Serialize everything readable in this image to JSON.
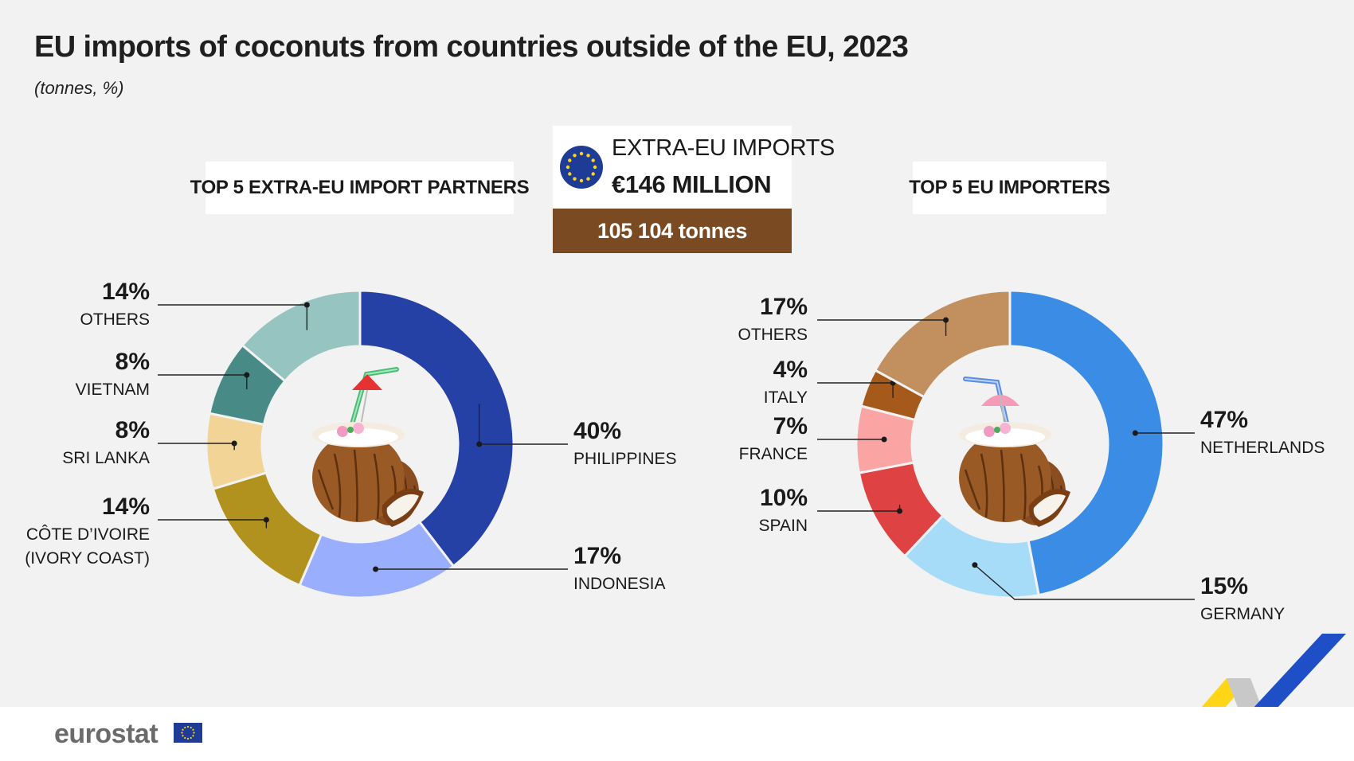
{
  "header": {
    "title": "EU imports of coconuts from countries outside of the EU, 2023",
    "subtitle": "(tonnes, %)"
  },
  "summary": {
    "line1": "EXTRA-EU IMPORTS",
    "line2": "€146 MILLION",
    "tonnes": "105 104 tonnes",
    "box_color": "#7a4b22"
  },
  "chart_data": [
    {
      "type": "pie",
      "title": "TOP 5 EXTRA-EU IMPORT PARTNERS",
      "unit": "%",
      "start": "top",
      "direction": "clockwise",
      "slices": [
        {
          "label": "PHILIPPINES",
          "value": 40,
          "display": "40%",
          "color": "#2641a6"
        },
        {
          "label": "INDONESIA",
          "value": 17,
          "display": "17%",
          "color": "#99aefc"
        },
        {
          "label": "CÔTE D’IVOIRE",
          "label2": "(IVORY COAST)",
          "value": 14,
          "display": "14%",
          "color": "#b1921e"
        },
        {
          "label": "SRI LANKA",
          "value": 8,
          "display": "8%",
          "color": "#f2d596"
        },
        {
          "label": "VIETNAM",
          "value": 8,
          "display": "8%",
          "color": "#488b86"
        },
        {
          "label": "OTHERS",
          "value": 14,
          "display": "14%",
          "color": "#96c4c0"
        }
      ]
    },
    {
      "type": "pie",
      "title": "TOP 5 EU IMPORTERS",
      "unit": "%",
      "start": "top",
      "direction": "clockwise",
      "slices": [
        {
          "label": "NETHERLANDS",
          "value": 47,
          "display": "47%",
          "color": "#3a8ce5"
        },
        {
          "label": "GERMANY",
          "value": 15,
          "display": "15%",
          "color": "#a6dcf7"
        },
        {
          "label": "SPAIN",
          "value": 10,
          "display": "10%",
          "color": "#df4242"
        },
        {
          "label": "FRANCE",
          "value": 7,
          "display": "7%",
          "color": "#fba4a4"
        },
        {
          "label": "ITALY",
          "value": 4,
          "display": "4%",
          "color": "#a55a1c"
        },
        {
          "label": "OTHERS",
          "value": 17,
          "display": "17%",
          "color": "#c28f5f"
        }
      ]
    }
  ],
  "footer": {
    "logo": "eurostat"
  },
  "icons": {
    "eu_flag": "eu-flag-icon",
    "coconut": "coconut-drink-icon"
  }
}
